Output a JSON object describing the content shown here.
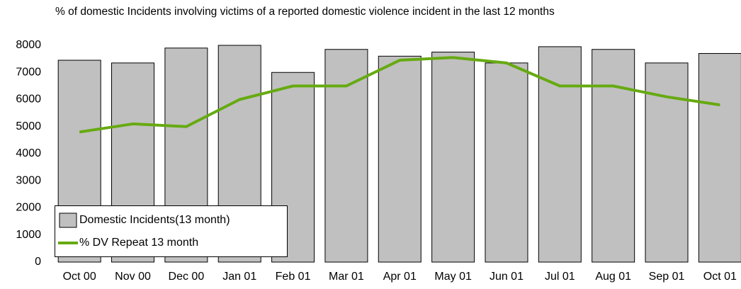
{
  "chart_data": {
    "type": "combo",
    "title": "% of domestic Incidents involving victims of a reported domestic violence incident in the last 12 months",
    "categories": [
      "Oct 00",
      "Nov 00",
      "Dec 00",
      "Jan 01",
      "Feb 01",
      "Mar 01",
      "Apr 01",
      "May 01",
      "Jun 01",
      "Jul 01",
      "Aug 01",
      "Sep 01",
      "Oct 01"
    ],
    "series": [
      {
        "name": "Domestic Incidents(13 month)",
        "type": "bar",
        "color": "#c0c0c0",
        "values": [
          7450,
          7350,
          7900,
          8000,
          7000,
          7850,
          7600,
          7750,
          7350,
          7950,
          7850,
          7350,
          7700
        ]
      },
      {
        "name": "% DV Repeat 13 month",
        "type": "line",
        "color": "#66aa11",
        "values": [
          4800,
          5100,
          5000,
          6000,
          6500,
          6500,
          7450,
          7550,
          7350,
          6500,
          6500,
          6100,
          5800
        ]
      }
    ],
    "ylim": [
      0,
      8000
    ],
    "yticks": [
      0,
      1000,
      2000,
      3000,
      4000,
      5000,
      6000,
      7000,
      8000
    ],
    "grid": false,
    "legend": "bottom-left"
  }
}
